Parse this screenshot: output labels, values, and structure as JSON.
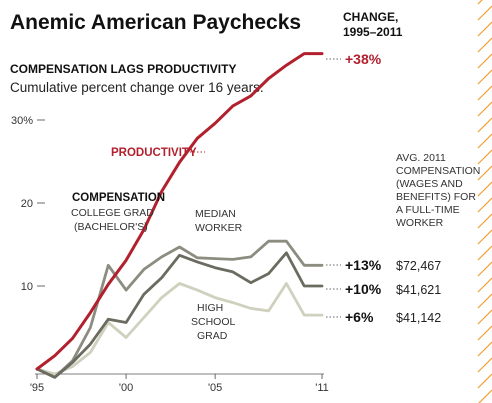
{
  "title": "Anemic American Paychecks",
  "subtitle": "COMPENSATION LAGS PRODUCTIVITY",
  "description": "Cumulative percent change over 16 years.",
  "change_header": [
    "CHANGE,",
    "1995–2011"
  ],
  "avg_header": [
    "AVG. 2011",
    "COMPENSATION",
    "(WAGES AND",
    "BENEFITS) FOR",
    "A FULL-TIME",
    "WORKER"
  ],
  "compensation_label": "COMPENSATION",
  "colors": {
    "productivity": "#b2202e",
    "college": "#8c8c80",
    "median": "#6b6b60",
    "high_school": "#cfd0bd",
    "diagonal": "#f0a030"
  },
  "chart_data": {
    "type": "line",
    "x": [
      1995,
      1996,
      1997,
      1998,
      1999,
      2000,
      2001,
      2002,
      2003,
      2004,
      2005,
      2006,
      2007,
      2008,
      2009,
      2010,
      2011
    ],
    "xticks": [
      {
        "value": 1995,
        "label": "'95"
      },
      {
        "value": 2000,
        "label": "'00"
      },
      {
        "value": 2005,
        "label": "'05"
      },
      {
        "value": 2011,
        "label": "'11"
      }
    ],
    "yticks": [
      {
        "value": 10,
        "label": "10"
      },
      {
        "value": 20,
        "label": "20"
      },
      {
        "value": 30,
        "label": "30%"
      }
    ],
    "ylim": [
      -2,
      40
    ],
    "xlim": [
      1995,
      2011
    ],
    "series": [
      {
        "name": "PRODUCTIVITY",
        "key": "productivity",
        "label_lines": [
          "PRODUCTIVITY"
        ],
        "change": "+38%",
        "avg_comp": "",
        "values": [
          0,
          1.6,
          3.7,
          6.8,
          10.2,
          13.1,
          16.8,
          21.4,
          24.9,
          27.8,
          29.6,
          31.7,
          32.9,
          35.0,
          36.6,
          38.0,
          38.0
        ]
      },
      {
        "name": "COLLEGE GRAD (BACHELOR'S)",
        "key": "college",
        "label_lines": [
          "COLLEGE GRAD",
          "(BACHELOR'S)"
        ],
        "change": "+13%",
        "avg_comp": "$72,467",
        "values": [
          0,
          -1,
          1,
          5,
          12.5,
          9.5,
          12,
          13.5,
          14.7,
          13.4,
          13.3,
          13.2,
          13.5,
          15.4,
          15.4,
          12.5,
          12.5
        ]
      },
      {
        "name": "MEDIAN WORKER",
        "key": "median",
        "label_lines": [
          "MEDIAN",
          "WORKER"
        ],
        "change": "+10%",
        "avg_comp": "$41,621",
        "values": [
          0,
          -1,
          0.8,
          3,
          6,
          5.6,
          9,
          11,
          13.7,
          12.9,
          12.2,
          11.7,
          10.4,
          11.5,
          14,
          10,
          10
        ]
      },
      {
        "name": "HIGH SCHOOL GRAD",
        "key": "high_school",
        "label_lines": [
          "HIGH",
          "SCHOOL",
          "GRAD"
        ],
        "change": "+6%",
        "avg_comp": "$41,142",
        "values": [
          0,
          -0.6,
          0.3,
          2,
          5.6,
          3.8,
          6.2,
          8.6,
          10.3,
          9.5,
          8.6,
          8.0,
          7.3,
          7.0,
          10.3,
          6.5,
          6.5
        ]
      }
    ]
  }
}
